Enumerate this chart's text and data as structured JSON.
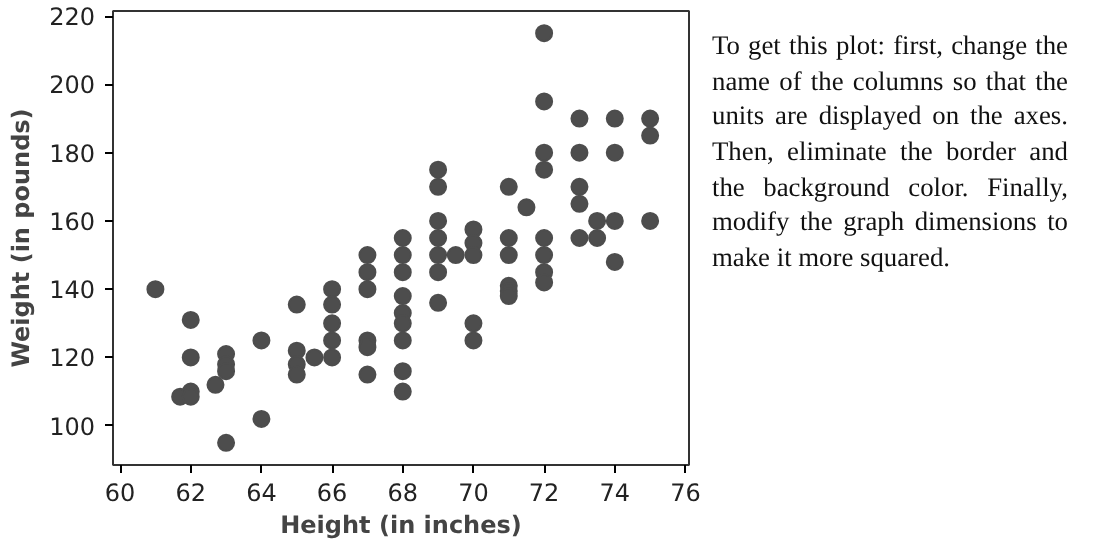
{
  "chart_data": {
    "type": "scatter",
    "xlabel": "Height (in inches)",
    "ylabel": "Weight (in pounds)",
    "x": [
      61,
      61.7,
      62,
      62,
      62,
      62,
      62.7,
      63,
      63,
      63,
      63,
      64,
      64,
      65,
      65,
      65,
      65,
      65.5,
      66,
      66,
      66,
      66,
      66,
      67,
      67,
      67,
      67,
      67,
      67,
      68,
      68,
      68,
      68,
      68,
      68,
      68,
      68,
      68,
      69,
      69,
      69,
      69,
      69,
      69,
      69,
      69.5,
      70,
      70,
      70,
      70,
      70,
      71,
      71,
      71,
      71,
      71,
      71,
      71.5,
      72,
      72,
      72,
      72,
      72,
      72,
      72,
      72,
      73,
      73,
      73,
      73,
      73,
      73.5,
      73.5,
      74,
      74,
      74,
      74,
      75,
      75,
      75
    ],
    "values": [
      140,
      108.5,
      131,
      120,
      110,
      108.5,
      112,
      121,
      118,
      116,
      95,
      125,
      102,
      135.5,
      122,
      118,
      115,
      120,
      140,
      135.5,
      130,
      125,
      120,
      150,
      145,
      140,
      125,
      123,
      115,
      155,
      150,
      145,
      138,
      133,
      130,
      125,
      116,
      110,
      175,
      170,
      160,
      155,
      150,
      145,
      136,
      150,
      157.5,
      153.5,
      150,
      130,
      125,
      170,
      155,
      150,
      141,
      139.5,
      138,
      164,
      215,
      195,
      180,
      175,
      155,
      150,
      145,
      142,
      190,
      180,
      170,
      165,
      155,
      160,
      155,
      190,
      180,
      160,
      148,
      190,
      185,
      160
    ],
    "color": "#4d4d4d",
    "marker": "circle",
    "grid": false,
    "xlim": [
      59.8,
      76.1
    ],
    "xticks": [
      60,
      62,
      64,
      66,
      68,
      70,
      72,
      74,
      76
    ],
    "ylim": [
      88.5,
      221.5
    ],
    "yticks": [
      100,
      120,
      140,
      160,
      180,
      200,
      220
    ],
    "annotations": [
      "To get this plot: first, change the name of the columns so that the units are displayed on the axes. Then, eliminate the border and the background color. Finally, modify the graph dimensions to make it more squared."
    ]
  }
}
